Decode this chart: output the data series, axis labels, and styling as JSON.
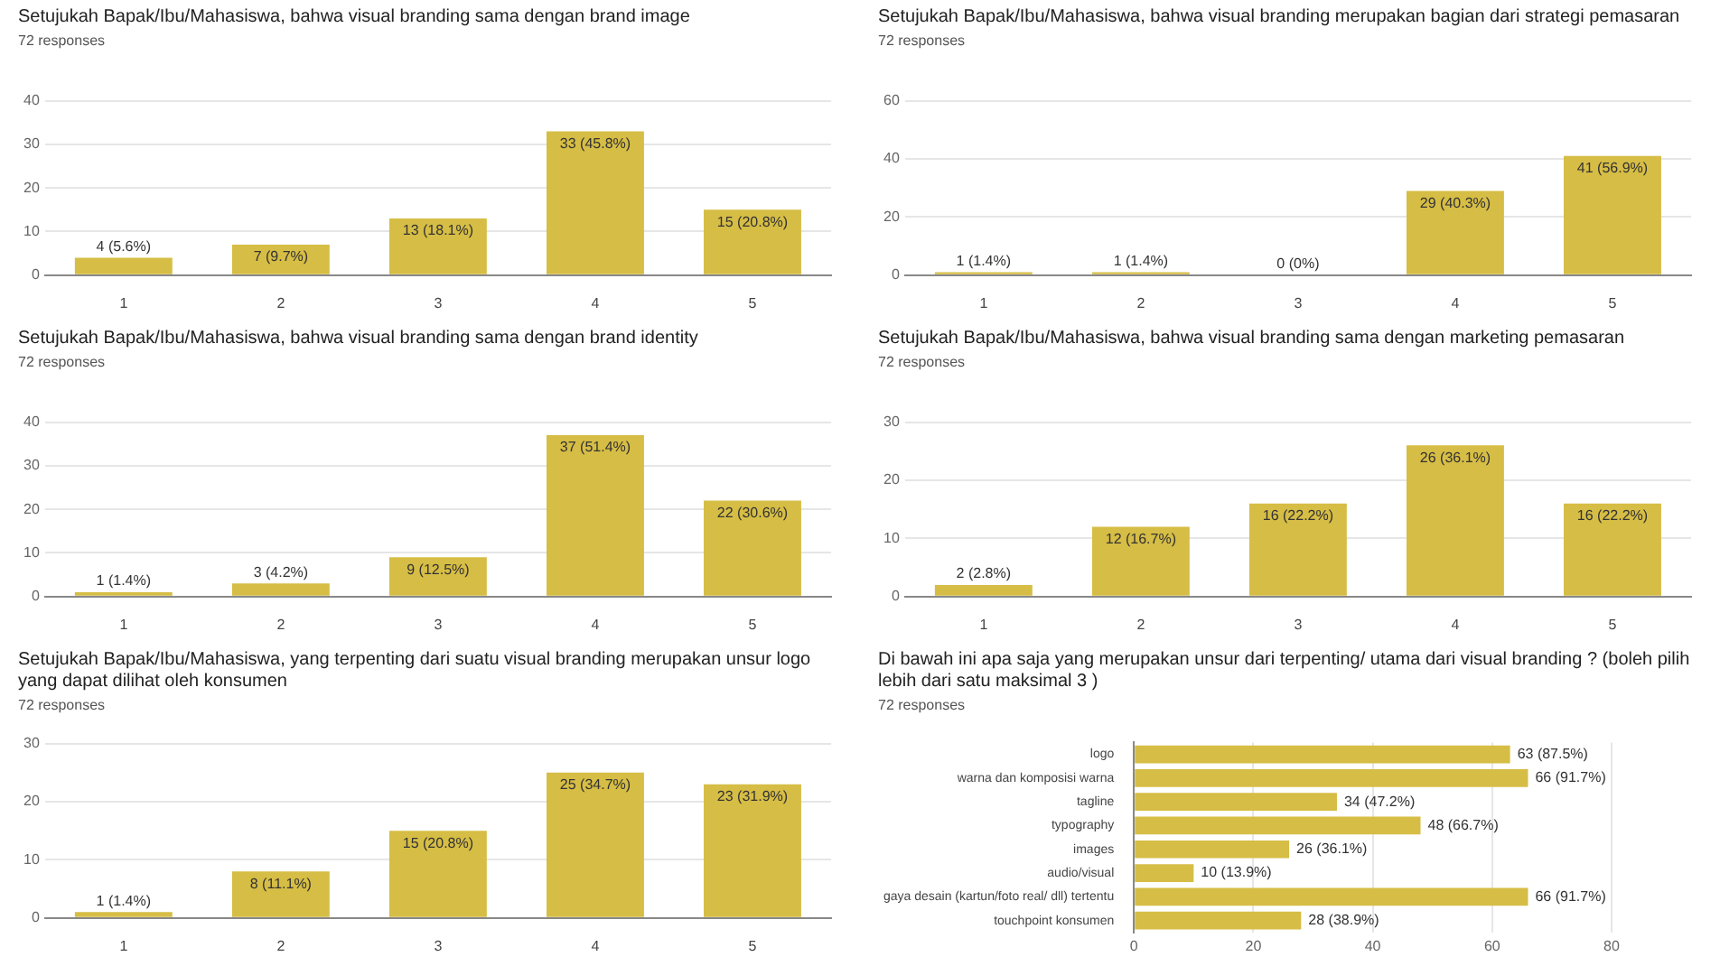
{
  "chart_data": [
    {
      "type": "bar",
      "title": "Setujukah Bapak/Ibu/Mahasiswa, bahwa visual branding sama dengan brand image",
      "subtitle": "72 responses",
      "categories": [
        "1",
        "2",
        "3",
        "4",
        "5"
      ],
      "values": [
        4,
        7,
        13,
        33,
        15
      ],
      "value_labels": [
        "4 (5.6%)",
        "7 (9.7%)",
        "13 (18.1%)",
        "33 (45.8%)",
        "15 (20.8%)"
      ],
      "color": "#d6bd45",
      "ylim": [
        0,
        40
      ],
      "yticks": [
        0,
        10,
        20,
        30,
        40
      ],
      "grid": "y"
    },
    {
      "type": "bar",
      "title": "Setujukah Bapak/Ibu/Mahasiswa, bahwa visual branding merupakan bagian dari strategi pemasaran",
      "subtitle": "72 responses",
      "categories": [
        "1",
        "2",
        "3",
        "4",
        "5"
      ],
      "values": [
        1,
        1,
        0,
        29,
        41
      ],
      "value_labels": [
        "1 (1.4%)",
        "1 (1.4%)",
        "0 (0%)",
        "29 (40.3%)",
        "41 (56.9%)"
      ],
      "color": "#d6bd45",
      "ylim": [
        0,
        60
      ],
      "yticks": [
        0,
        20,
        40,
        60
      ],
      "grid": "y"
    },
    {
      "type": "bar",
      "title": "Setujukah Bapak/Ibu/Mahasiswa, bahwa visual branding sama dengan brand identity",
      "subtitle": "72 responses",
      "categories": [
        "1",
        "2",
        "3",
        "4",
        "5"
      ],
      "values": [
        1,
        3,
        9,
        37,
        22
      ],
      "value_labels": [
        "1 (1.4%)",
        "3 (4.2%)",
        "9 (12.5%)",
        "37 (51.4%)",
        "22 (30.6%)"
      ],
      "color": "#d6bd45",
      "ylim": [
        0,
        40
      ],
      "yticks": [
        0,
        10,
        20,
        30,
        40
      ],
      "grid": "y"
    },
    {
      "type": "bar",
      "title": "Setujukah Bapak/Ibu/Mahasiswa, bahwa visual branding sama dengan marketing pemasaran",
      "subtitle": "72 responses",
      "categories": [
        "1",
        "2",
        "3",
        "4",
        "5"
      ],
      "values": [
        2,
        12,
        16,
        26,
        16
      ],
      "value_labels": [
        "2 (2.8%)",
        "12 (16.7%)",
        "16 (22.2%)",
        "26 (36.1%)",
        "16 (22.2%)"
      ],
      "color": "#d6bd45",
      "ylim": [
        0,
        30
      ],
      "yticks": [
        0,
        10,
        20,
        30
      ],
      "grid": "y"
    },
    {
      "type": "bar",
      "title": "Setujukah Bapak/Ibu/Mahasiswa, yang terpenting dari suatu visual branding merupakan unsur logo yang dapat dilihat oleh konsumen",
      "subtitle": "72 responses",
      "categories": [
        "1",
        "2",
        "3",
        "4",
        "5"
      ],
      "values": [
        1,
        8,
        15,
        25,
        23
      ],
      "value_labels": [
        "1 (1.4%)",
        "8 (11.1%)",
        "15 (20.8%)",
        "25 (34.7%)",
        "23 (31.9%)"
      ],
      "color": "#d6bd45",
      "ylim": [
        0,
        30
      ],
      "yticks": [
        0,
        10,
        20,
        30
      ],
      "grid": "y"
    },
    {
      "type": "bar",
      "orientation": "horizontal",
      "title": "Di bawah ini apa saja yang merupakan unsur dari terpenting/ utama dari visual branding ? (boleh pilih lebih dari satu maksimal 3 )",
      "subtitle": "72 responses",
      "categories": [
        "logo",
        "warna dan komposisi warna",
        "tagline",
        "typography",
        "images",
        "audio/visual",
        "gaya desain (kartun/foto real/ dll) tertentu",
        "touchpoint konsumen"
      ],
      "values": [
        63,
        66,
        34,
        48,
        26,
        10,
        66,
        28
      ],
      "value_labels": [
        "63 (87.5%)",
        "66 (91.7%)",
        "34 (47.2%)",
        "48 (66.7%)",
        "26 (36.1%)",
        "10 (13.9%)",
        "66 (91.7%)",
        "28 (38.9%)"
      ],
      "color": "#d6bd45",
      "xlim": [
        0,
        80
      ],
      "xticks": [
        0,
        20,
        40,
        60,
        80
      ],
      "grid": "x"
    }
  ]
}
